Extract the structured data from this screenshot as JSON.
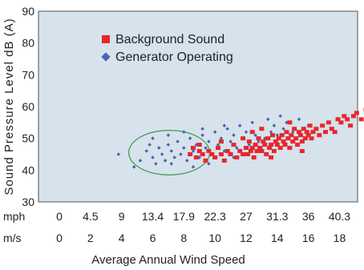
{
  "chart_data": {
    "type": "scatter",
    "ylabel": "Sound Pressure Level dB (A)",
    "xlabel": "Average Annual Wind Speed",
    "ylim": [
      30,
      90
    ],
    "yticks": [
      "30",
      "40",
      "50",
      "60",
      "70",
      "80",
      "90"
    ],
    "xlim_ms": [
      0,
      20.5
    ],
    "x_axis_rows": [
      {
        "unit": "mph",
        "ticks": [
          {
            "label": "0",
            "at_ms": 0
          },
          {
            "label": "4.5",
            "at_ms": 2
          },
          {
            "label": "9",
            "at_ms": 4
          },
          {
            "label": "13.4",
            "at_ms": 6
          },
          {
            "label": "17.9",
            "at_ms": 8
          },
          {
            "label": "22.3",
            "at_ms": 10
          },
          {
            "label": "27",
            "at_ms": 12
          },
          {
            "label": "31.3",
            "at_ms": 14
          },
          {
            "label": "36",
            "at_ms": 16
          },
          {
            "label": "40.3",
            "at_ms": 18
          },
          {
            "label": "45",
            "at_ms": 20
          }
        ]
      },
      {
        "unit": "m/s",
        "ticks": [
          {
            "label": "0",
            "at_ms": 0
          },
          {
            "label": "2",
            "at_ms": 2
          },
          {
            "label": "4",
            "at_ms": 4
          },
          {
            "label": "6",
            "at_ms": 6
          },
          {
            "label": "8",
            "at_ms": 8
          },
          {
            "label": "10",
            "at_ms": 10
          },
          {
            "label": "12",
            "at_ms": 12
          },
          {
            "label": "14",
            "at_ms": 14
          },
          {
            "label": "16",
            "at_ms": 16
          },
          {
            "label": "18",
            "at_ms": 18
          },
          {
            "label": "20",
            "at_ms": 20
          }
        ]
      }
    ],
    "legend_position": "top-left",
    "grid": false,
    "background_color": "#d6e2ec",
    "series": [
      {
        "name": "Background Sound",
        "marker": "square",
        "color": "#e8262b",
        "points": [
          [
            8.4,
            45
          ],
          [
            8.6,
            47
          ],
          [
            8.8,
            44
          ],
          [
            9.0,
            46
          ],
          [
            9.2,
            45
          ],
          [
            9.4,
            43
          ],
          [
            9.6,
            46
          ],
          [
            9.8,
            45
          ],
          [
            10.0,
            44
          ],
          [
            10.2,
            47
          ],
          [
            10.4,
            45
          ],
          [
            10.6,
            43
          ],
          [
            10.8,
            46
          ],
          [
            11.0,
            45
          ],
          [
            11.2,
            48
          ],
          [
            11.4,
            44
          ],
          [
            11.6,
            46
          ],
          [
            11.8,
            45
          ],
          [
            12.0,
            47
          ],
          [
            12.1,
            45
          ],
          [
            12.2,
            49
          ],
          [
            12.3,
            46
          ],
          [
            12.4,
            47
          ],
          [
            12.5,
            44
          ],
          [
            12.6,
            48
          ],
          [
            12.7,
            46
          ],
          [
            12.8,
            50
          ],
          [
            12.9,
            47
          ],
          [
            13.0,
            46
          ],
          [
            13.1,
            49
          ],
          [
            13.2,
            48
          ],
          [
            13.3,
            45
          ],
          [
            13.4,
            50
          ],
          [
            13.5,
            47
          ],
          [
            13.6,
            48
          ],
          [
            13.7,
            51
          ],
          [
            13.8,
            46
          ],
          [
            13.9,
            49
          ],
          [
            14.0,
            48
          ],
          [
            14.1,
            50
          ],
          [
            14.2,
            47
          ],
          [
            14.3,
            51
          ],
          [
            14.4,
            49
          ],
          [
            14.5,
            48
          ],
          [
            14.6,
            52
          ],
          [
            14.7,
            50
          ],
          [
            14.8,
            47
          ],
          [
            14.9,
            51
          ],
          [
            15.0,
            49
          ],
          [
            15.1,
            53
          ],
          [
            15.2,
            50
          ],
          [
            15.3,
            48
          ],
          [
            15.4,
            52
          ],
          [
            15.5,
            51
          ],
          [
            15.6,
            49
          ],
          [
            15.7,
            53
          ],
          [
            15.8,
            50
          ],
          [
            15.9,
            52
          ],
          [
            16.0,
            51
          ],
          [
            16.1,
            54
          ],
          [
            16.2,
            50
          ],
          [
            16.3,
            52
          ],
          [
            16.5,
            53
          ],
          [
            16.7,
            51
          ],
          [
            16.9,
            54
          ],
          [
            17.1,
            52
          ],
          [
            17.3,
            55
          ],
          [
            17.5,
            53
          ],
          [
            17.7,
            52
          ],
          [
            17.9,
            56
          ],
          [
            18.1,
            55
          ],
          [
            18.3,
            57
          ],
          [
            18.5,
            56
          ],
          [
            18.7,
            54
          ],
          [
            18.9,
            57
          ],
          [
            19.1,
            58
          ],
          [
            19.4,
            56
          ],
          [
            19.7,
            59
          ],
          [
            20.0,
            58
          ],
          [
            12.4,
            52
          ],
          [
            13.0,
            53
          ],
          [
            11.8,
            50
          ],
          [
            14.8,
            55
          ],
          [
            10.4,
            49
          ],
          [
            9.0,
            48
          ],
          [
            15.6,
            46
          ],
          [
            13.6,
            44
          ]
        ]
      },
      {
        "name": "Generator Operating",
        "marker": "diamond",
        "color": "#4a63b0",
        "points": [
          [
            3.8,
            45
          ],
          [
            4.8,
            41
          ],
          [
            5.2,
            43
          ],
          [
            5.6,
            46
          ],
          [
            6.0,
            44
          ],
          [
            6.2,
            42
          ],
          [
            6.4,
            47
          ],
          [
            6.6,
            45
          ],
          [
            6.8,
            43
          ],
          [
            7.0,
            48
          ],
          [
            7.2,
            46
          ],
          [
            7.4,
            44
          ],
          [
            7.6,
            49
          ],
          [
            7.8,
            45
          ],
          [
            8.0,
            47
          ],
          [
            8.2,
            43
          ],
          [
            8.4,
            50
          ],
          [
            8.6,
            46
          ],
          [
            8.8,
            48
          ],
          [
            9.0,
            44
          ],
          [
            9.2,
            51
          ],
          [
            9.4,
            47
          ],
          [
            9.6,
            49
          ],
          [
            9.8,
            45
          ],
          [
            10.0,
            52
          ],
          [
            10.2,
            48
          ],
          [
            10.4,
            50
          ],
          [
            10.6,
            46
          ],
          [
            10.8,
            53
          ],
          [
            11.0,
            49
          ],
          [
            11.2,
            51
          ],
          [
            11.4,
            47
          ],
          [
            11.6,
            54
          ],
          [
            11.8,
            50
          ],
          [
            12.0,
            52
          ],
          [
            12.2,
            48
          ],
          [
            12.4,
            55
          ],
          [
            12.6,
            51
          ],
          [
            12.8,
            49
          ],
          [
            13.0,
            53
          ],
          [
            13.2,
            50
          ],
          [
            13.4,
            56
          ],
          [
            13.6,
            52
          ],
          [
            13.8,
            54
          ],
          [
            14.0,
            51
          ],
          [
            14.2,
            57
          ],
          [
            14.4,
            53
          ],
          [
            14.6,
            55
          ],
          [
            15.0,
            52
          ],
          [
            15.4,
            56
          ],
          [
            16.0,
            54
          ],
          [
            6.0,
            50
          ],
          [
            7.0,
            51
          ],
          [
            8.0,
            52
          ],
          [
            9.2,
            53
          ],
          [
            10.6,
            54
          ],
          [
            5.8,
            48
          ],
          [
            7.2,
            42
          ],
          [
            8.6,
            41
          ],
          [
            9.6,
            42
          ],
          [
            11.2,
            44
          ],
          [
            12.0,
            45
          ],
          [
            12.8,
            47
          ]
        ]
      }
    ],
    "annotations": [
      {
        "type": "circle",
        "color": "#3a9a4a",
        "center": [
          8.4,
          45.5
        ],
        "x_radius_ms": 2.6,
        "y_radius_db": 7
      }
    ]
  }
}
